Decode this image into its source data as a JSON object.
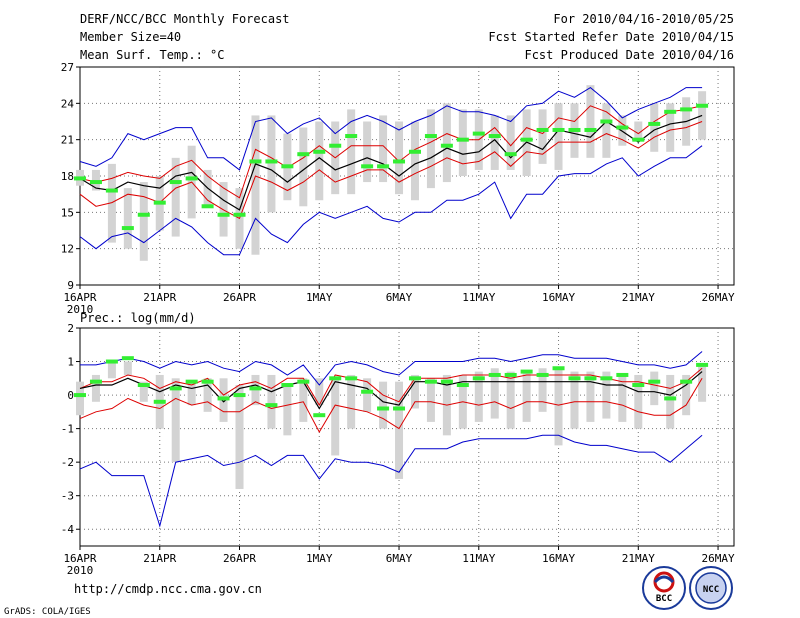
{
  "header": {
    "title": "DERF/NCC/BCC Monthly Forecast",
    "member_size": "Member Size=40",
    "variable": "Mean Surf. Temp.: °C",
    "period": "For 2010/04/16-2010/05/25",
    "fcst_started": "Fcst Started Refer Date 2010/04/15",
    "fcst_produced": "Fcst Produced Date 2010/04/16"
  },
  "footer": {
    "url": "http://cmdp.ncc.cma.gov.cn",
    "credit": "GrADS: COLA/IGES",
    "logo_bcc": "BCC",
    "logo_ncc": "NCC"
  },
  "colors": {
    "box": "#d3d3d3",
    "median": "#000000",
    "band": "#dd0000",
    "envelope": "#0000cc",
    "observed": "#33ee33",
    "grid": "#777777"
  },
  "chart_data": [
    {
      "type": "line",
      "title": "Mean Surf. Temp.: °C",
      "xlabel": "",
      "ylabel": "°C",
      "ylim": [
        9,
        27
      ],
      "yticks": [
        "9",
        "12",
        "15",
        "18",
        "21",
        "24",
        "27"
      ],
      "x_tick_labels": [
        "16APR",
        "21APR",
        "26APR",
        "1MAY",
        "6MAY",
        "11MAY",
        "16MAY",
        "21MAY",
        "26MAY"
      ],
      "x_year_label": "2010",
      "days": [
        1,
        2,
        3,
        4,
        5,
        6,
        7,
        8,
        9,
        10,
        11,
        12,
        13,
        14,
        15,
        16,
        17,
        18,
        19,
        20,
        21,
        22,
        23,
        24,
        25,
        26,
        27,
        28,
        29,
        30,
        31,
        32,
        33,
        34,
        35,
        36,
        37,
        38,
        39,
        40
      ],
      "box_low": [
        17.2,
        16.8,
        12.5,
        12.0,
        11.0,
        13.5,
        13.0,
        14.5,
        15.5,
        13.0,
        12.0,
        11.5,
        15.0,
        16.0,
        15.5,
        16.0,
        16.5,
        16.5,
        17.5,
        17.5,
        16.5,
        16.0,
        17.0,
        17.5,
        18.0,
        18.5,
        18.5,
        18.5,
        18.0,
        19.0,
        18.5,
        19.5,
        19.5,
        19.5,
        20.5,
        21.0,
        20.0,
        20.0,
        20.5,
        21.0
      ],
      "box_high": [
        18.5,
        18.5,
        19.0,
        17.0,
        17.5,
        18.0,
        19.5,
        20.5,
        18.5,
        17.5,
        17.0,
        23.0,
        23.0,
        21.5,
        22.0,
        22.5,
        22.5,
        23.5,
        22.5,
        23.0,
        22.5,
        22.5,
        23.5,
        24.0,
        23.5,
        23.5,
        23.0,
        23.0,
        23.5,
        23.5,
        24.0,
        24.0,
        25.5,
        24.0,
        23.0,
        22.5,
        24.0,
        24.0,
        24.5,
        25.0
      ],
      "median": [
        17.8,
        17.0,
        16.8,
        17.5,
        17.2,
        17.0,
        18.0,
        18.3,
        17.0,
        16.0,
        15.2,
        19.0,
        18.5,
        17.5,
        18.5,
        19.5,
        18.5,
        19.0,
        19.5,
        19.0,
        18.0,
        19.0,
        19.5,
        20.3,
        19.8,
        20.0,
        21.0,
        19.5,
        20.8,
        20.2,
        21.8,
        21.5,
        21.2,
        22.5,
        21.7,
        20.8,
        21.8,
        22.3,
        22.5,
        23.0
      ],
      "band_upper": [
        17.8,
        17.5,
        17.8,
        18.3,
        18.0,
        17.8,
        18.8,
        19.3,
        18.0,
        17.0,
        16.2,
        20.2,
        19.5,
        18.7,
        19.5,
        20.5,
        19.5,
        20.5,
        20.5,
        20.5,
        19.2,
        20.2,
        20.8,
        21.5,
        21.0,
        21.0,
        22.0,
        20.5,
        22.0,
        21.5,
        22.8,
        22.5,
        23.8,
        23.3,
        22.3,
        21.5,
        22.5,
        23.3,
        23.5,
        23.8
      ],
      "band_lower": [
        16.5,
        15.5,
        15.8,
        16.5,
        16.3,
        15.8,
        17.0,
        17.5,
        16.0,
        15.2,
        14.5,
        18.0,
        17.5,
        16.8,
        17.5,
        18.5,
        17.5,
        18.0,
        18.5,
        18.5,
        17.5,
        18.2,
        18.8,
        19.5,
        19.0,
        19.2,
        20.0,
        18.8,
        20.0,
        19.8,
        20.8,
        20.8,
        20.8,
        21.5,
        21.0,
        20.3,
        21.2,
        21.8,
        22.0,
        22.5
      ],
      "envelope_max": [
        19.2,
        18.8,
        19.5,
        21.5,
        21.0,
        21.5,
        22.0,
        22.0,
        19.5,
        19.5,
        18.5,
        22.5,
        22.8,
        21.5,
        22.3,
        22.8,
        21.5,
        22.5,
        23.0,
        22.5,
        21.8,
        22.5,
        23.0,
        23.8,
        23.3,
        23.3,
        23.0,
        22.5,
        23.8,
        24.0,
        25.0,
        24.5,
        25.3,
        24.2,
        22.8,
        23.5,
        24.0,
        24.5,
        25.3,
        25.3
      ],
      "envelope_min": [
        13.0,
        12.0,
        13.0,
        13.3,
        12.5,
        13.5,
        14.5,
        13.8,
        12.5,
        11.5,
        11.5,
        14.5,
        13.2,
        12.5,
        14.0,
        15.0,
        14.5,
        15.0,
        15.5,
        14.5,
        14.2,
        15.0,
        15.0,
        16.0,
        16.0,
        16.5,
        17.5,
        14.5,
        16.5,
        16.5,
        18.0,
        18.2,
        18.2,
        19.0,
        19.5,
        18.0,
        18.8,
        19.5,
        19.5,
        20.5
      ],
      "observed": [
        17.8,
        17.5,
        16.8,
        13.7,
        14.8,
        15.8,
        17.5,
        17.8,
        15.5,
        14.8,
        14.8,
        19.2,
        19.2,
        18.8,
        19.8,
        20.0,
        20.5,
        21.3,
        18.8,
        18.8,
        19.2,
        20.0,
        21.3,
        20.5,
        21.0,
        21.5,
        21.3,
        19.8,
        21.0,
        21.8,
        21.8,
        21.8,
        21.8,
        22.5,
        22.0,
        21.0,
        22.3,
        23.3,
        23.5,
        23.8
      ]
    },
    {
      "type": "line",
      "title": "Prec.: log(mm/d)",
      "xlabel": "",
      "ylabel": "log(mm/d)",
      "ylim": [
        -4.5,
        2
      ],
      "yticks": [
        "-4",
        "-3",
        "-2",
        "-1",
        "0",
        "1",
        "2"
      ],
      "x_tick_labels": [
        "16APR",
        "21APR",
        "26APR",
        "1MAY",
        "6MAY",
        "11MAY",
        "16MAY",
        "21MAY",
        "26MAY"
      ],
      "x_year_label": "2010",
      "days": [
        1,
        2,
        3,
        4,
        5,
        6,
        7,
        8,
        9,
        10,
        11,
        12,
        13,
        14,
        15,
        16,
        17,
        18,
        19,
        20,
        21,
        22,
        23,
        24,
        25,
        26,
        27,
        28,
        29,
        30,
        31,
        32,
        33,
        34,
        35,
        36,
        37,
        38,
        39,
        40
      ],
      "box_low": [
        -0.6,
        -0.2,
        0.5,
        0.6,
        -0.2,
        -1.0,
        -2.0,
        -0.3,
        -0.5,
        -0.8,
        -2.8,
        -0.3,
        -1.0,
        -1.2,
        -0.8,
        -0.3,
        -1.8,
        -1.0,
        -0.5,
        -1.0,
        -2.5,
        -0.4,
        -0.8,
        -1.2,
        -1.0,
        -0.8,
        -0.7,
        -1.0,
        -0.8,
        -0.5,
        -1.5,
        -1.0,
        -0.8,
        -0.7,
        -0.8,
        -1.0,
        -0.3,
        -1.0,
        -0.6,
        -0.2
      ],
      "box_high": [
        0.4,
        0.6,
        1.0,
        1.0,
        0.4,
        0.6,
        0.5,
        0.4,
        0.5,
        0.5,
        0.3,
        0.6,
        0.6,
        0.3,
        0.5,
        0.5,
        0.5,
        0.6,
        0.5,
        0.4,
        0.4,
        0.6,
        0.5,
        0.6,
        0.6,
        0.7,
        0.8,
        0.7,
        0.7,
        0.8,
        0.8,
        0.7,
        0.7,
        0.7,
        0.6,
        0.6,
        0.7,
        0.6,
        0.6,
        0.9
      ],
      "median": [
        0.2,
        0.3,
        0.3,
        0.5,
        0.3,
        0.1,
        0.3,
        0.2,
        0.3,
        -0.2,
        0.2,
        0.3,
        0.1,
        0.3,
        0.4,
        -0.4,
        0.4,
        0.3,
        0.2,
        -0.2,
        -0.3,
        0.4,
        0.4,
        0.3,
        0.4,
        0.4,
        0.4,
        0.4,
        0.4,
        0.4,
        0.4,
        0.4,
        0.4,
        0.3,
        0.3,
        0.1,
        0.1,
        0.0,
        0.3,
        0.7
      ],
      "band_upper": [
        0.2,
        0.4,
        0.4,
        0.6,
        0.5,
        0.2,
        0.4,
        0.3,
        0.5,
        0.0,
        0.3,
        0.4,
        0.2,
        0.5,
        0.5,
        -0.3,
        0.6,
        0.5,
        0.4,
        0.0,
        -0.2,
        0.5,
        0.5,
        0.5,
        0.6,
        0.6,
        0.6,
        0.5,
        0.6,
        0.6,
        0.6,
        0.6,
        0.6,
        0.5,
        0.4,
        0.4,
        0.3,
        0.2,
        0.4,
        0.8
      ],
      "band_lower": [
        -0.7,
        -0.5,
        -0.4,
        -0.1,
        -0.3,
        -0.4,
        -0.1,
        -0.3,
        -0.2,
        -0.5,
        -0.5,
        -0.2,
        -0.4,
        -0.3,
        -0.2,
        -1.1,
        -0.3,
        -0.4,
        -0.5,
        -0.7,
        -1.0,
        -0.2,
        -0.2,
        -0.3,
        -0.2,
        -0.3,
        -0.2,
        -0.4,
        -0.2,
        -0.2,
        -0.3,
        -0.2,
        -0.2,
        -0.2,
        -0.3,
        -0.5,
        -0.6,
        -0.6,
        -0.3,
        0.5
      ],
      "envelope_max": [
        0.9,
        0.9,
        1.0,
        1.1,
        1.0,
        0.8,
        1.0,
        0.9,
        1.0,
        0.8,
        0.7,
        1.0,
        0.9,
        0.6,
        0.9,
        0.3,
        0.9,
        1.0,
        0.9,
        0.7,
        0.6,
        1.0,
        1.0,
        1.0,
        1.0,
        1.1,
        1.1,
        1.0,
        1.1,
        1.2,
        1.2,
        1.1,
        1.1,
        1.1,
        1.0,
        0.9,
        0.9,
        0.8,
        0.9,
        1.3
      ],
      "envelope_min": [
        -2.2,
        -2.0,
        -2.4,
        -2.4,
        -2.4,
        -3.9,
        -2.0,
        -1.9,
        -1.8,
        -2.1,
        -2.0,
        -1.8,
        -2.1,
        -1.8,
        -1.8,
        -2.5,
        -1.9,
        -2.0,
        -2.0,
        -2.1,
        -2.3,
        -1.6,
        -1.6,
        -1.6,
        -1.4,
        -1.3,
        -1.3,
        -1.3,
        -1.3,
        -1.2,
        -1.2,
        -1.4,
        -1.5,
        -1.5,
        -1.6,
        -1.7,
        -1.7,
        -2.0,
        -1.6,
        -1.2
      ],
      "observed": [
        0.0,
        0.4,
        1.0,
        1.1,
        0.3,
        -0.2,
        0.2,
        0.4,
        0.4,
        -0.1,
        0.0,
        0.2,
        -0.3,
        0.3,
        0.4,
        -0.6,
        0.5,
        0.5,
        0.1,
        -0.4,
        -0.4,
        0.5,
        0.4,
        0.4,
        0.3,
        0.5,
        0.6,
        0.6,
        0.7,
        0.6,
        0.8,
        0.5,
        0.5,
        0.5,
        0.6,
        0.3,
        0.4,
        -0.1,
        0.4,
        0.9
      ]
    }
  ]
}
